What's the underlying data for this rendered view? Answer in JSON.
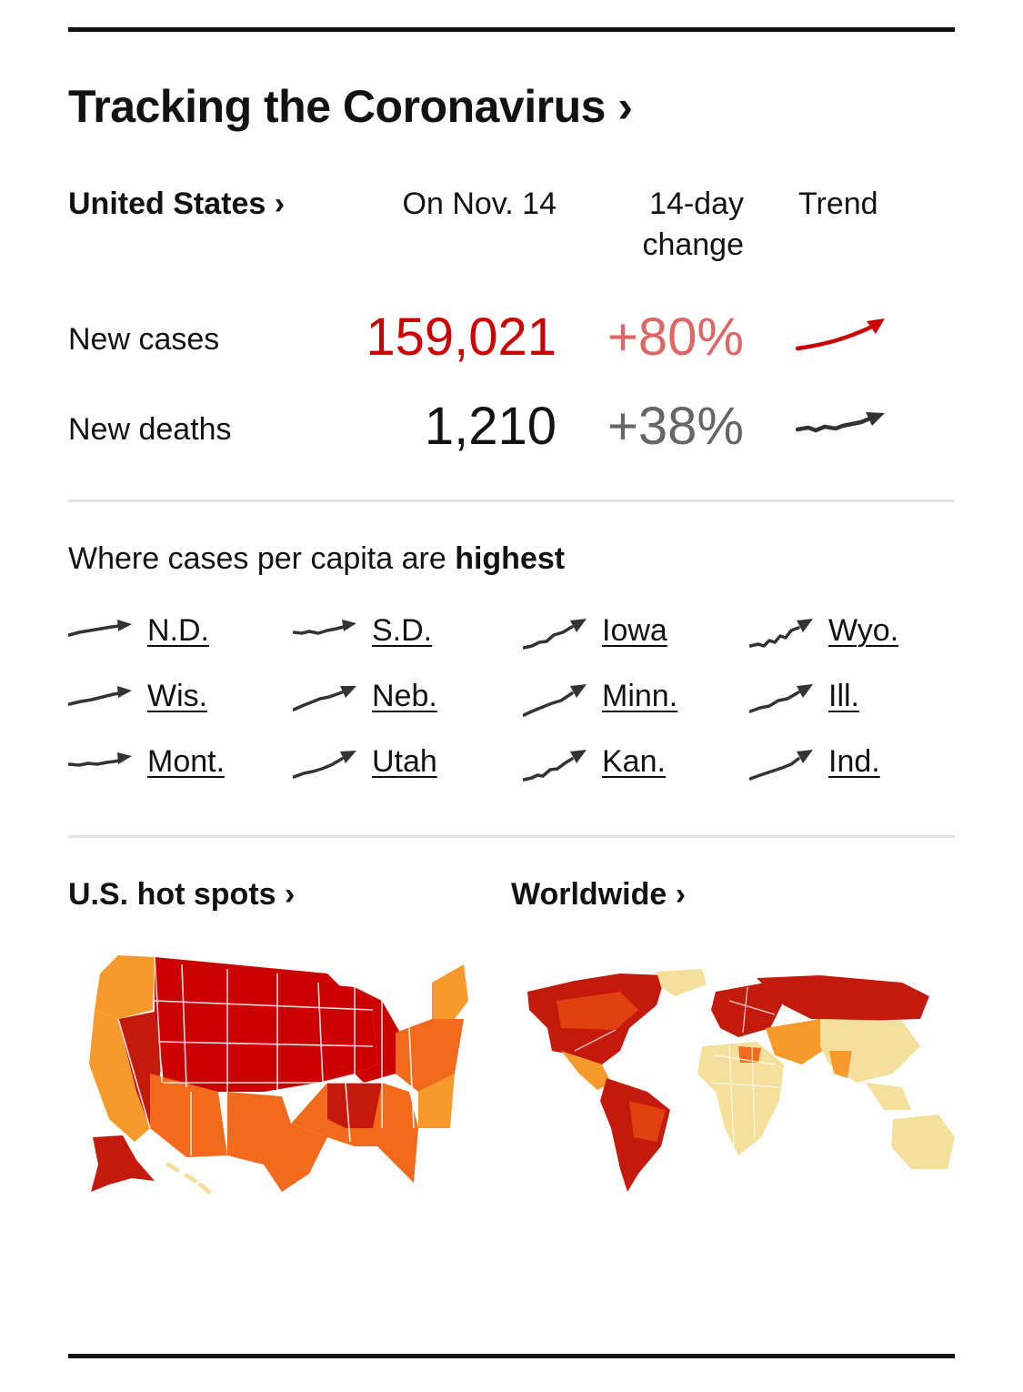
{
  "title": "Tracking the Coronavirus ›",
  "header": {
    "country": "United States ›",
    "date": "On Nov. 14",
    "change_line1": "14-day",
    "change_line2": "change",
    "trend": "Trend"
  },
  "rows": [
    {
      "label": "New cases",
      "value": "159,021",
      "change": "+80%"
    },
    {
      "label": "New deaths",
      "value": "1,210",
      "change": "+38%"
    }
  ],
  "highest": {
    "prefix": "Where cases per capita are ",
    "emphasis": "highest",
    "states": [
      "N.D.",
      "S.D.",
      "Iowa",
      "Wyo.",
      "Wis.",
      "Neb.",
      "Minn.",
      "Ill.",
      "Mont.",
      "Utah",
      "Kan.",
      "Ind."
    ]
  },
  "sections": {
    "hotspots": "U.S. hot spots ›",
    "worldwide": "Worldwide ›"
  },
  "colors": {
    "red": "#cc0000",
    "light_red": "#e06666",
    "dark_red": "#c41a0e",
    "orange": "#f26b1d",
    "light_orange": "#f79a2b",
    "pale": "#f4e09a",
    "ink": "#333333"
  },
  "icons": [
    "trend-arrow-icon",
    "us-map-icon",
    "world-map-icon"
  ]
}
